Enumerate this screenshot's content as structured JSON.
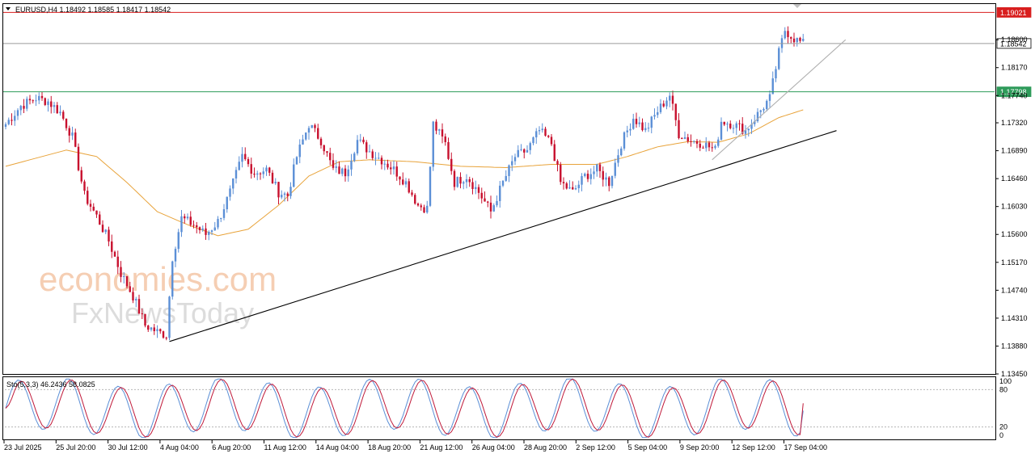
{
  "header": {
    "symbol_line": "EURUSD,H4  1.18492 1.18585 1.18417 1.18542"
  },
  "chart_data": {
    "type": "candlestick",
    "symbol": "EURUSD",
    "timeframe": "H4",
    "ohlc": {
      "open": 1.18492,
      "high": 1.18585,
      "low": 1.18417,
      "close": 1.18542
    },
    "price_axis": {
      "ticks": [
        "1.18600",
        "1.18170",
        "1.17740",
        "1.17320",
        "1.16890",
        "1.16460",
        "1.16030",
        "1.15600",
        "1.15170",
        "1.14740",
        "1.14310",
        "1.13880",
        "1.13450"
      ],
      "range": [
        1.1345,
        1.1915
      ]
    },
    "horizontal_lines": [
      {
        "label": "1.19021",
        "value": 1.19021,
        "color": "#d81e1e"
      },
      {
        "label": "1.18542",
        "value": 1.18542,
        "color": "#9a9a9a",
        "current": true
      },
      {
        "label": "1.17798",
        "value": 1.17798,
        "color": "#2e9b5a"
      }
    ],
    "time_axis": [
      "23 Jul 2025",
      "25 Jul 20:00",
      "30 Jul 12:00",
      "4 Aug 04:00",
      "6 Aug 20:00",
      "11 Aug 12:00",
      "14 Aug 04:00",
      "18 Aug 20:00",
      "21 Aug 12:00",
      "26 Aug 04:00",
      "28 Aug 20:00",
      "2 Sep 12:00",
      "5 Sep 04:00",
      "9 Sep 20:00",
      "12 Sep 12:00",
      "17 Sep 04:00"
    ],
    "close_keypoints": [
      {
        "i": 0,
        "p": 1.173
      },
      {
        "i": 5,
        "p": 1.1758
      },
      {
        "i": 10,
        "p": 1.177
      },
      {
        "i": 14,
        "p": 1.1765
      },
      {
        "i": 18,
        "p": 1.1748
      },
      {
        "i": 22,
        "p": 1.171
      },
      {
        "i": 26,
        "p": 1.162
      },
      {
        "i": 30,
        "p": 1.1588
      },
      {
        "i": 34,
        "p": 1.155
      },
      {
        "i": 38,
        "p": 1.15
      },
      {
        "i": 42,
        "p": 1.1465
      },
      {
        "i": 46,
        "p": 1.142
      },
      {
        "i": 50,
        "p": 1.141
      },
      {
        "i": 53,
        "p": 1.1405
      },
      {
        "i": 55,
        "p": 1.1525
      },
      {
        "i": 58,
        "p": 1.1585
      },
      {
        "i": 62,
        "p": 1.1575
      },
      {
        "i": 66,
        "p": 1.156
      },
      {
        "i": 70,
        "p": 1.158
      },
      {
        "i": 74,
        "p": 1.1625
      },
      {
        "i": 78,
        "p": 1.168
      },
      {
        "i": 82,
        "p": 1.1655
      },
      {
        "i": 86,
        "p": 1.166
      },
      {
        "i": 90,
        "p": 1.1625
      },
      {
        "i": 93,
        "p": 1.162
      },
      {
        "i": 96,
        "p": 1.168
      },
      {
        "i": 100,
        "p": 1.173
      },
      {
        "i": 104,
        "p": 1.1705
      },
      {
        "i": 108,
        "p": 1.166
      },
      {
        "i": 112,
        "p": 1.1655
      },
      {
        "i": 116,
        "p": 1.1705
      },
      {
        "i": 120,
        "p": 1.1688
      },
      {
        "i": 124,
        "p": 1.1675
      },
      {
        "i": 128,
        "p": 1.166
      },
      {
        "i": 132,
        "p": 1.164
      },
      {
        "i": 136,
        "p": 1.1605
      },
      {
        "i": 139,
        "p": 1.16
      },
      {
        "i": 141,
        "p": 1.173
      },
      {
        "i": 145,
        "p": 1.17
      },
      {
        "i": 148,
        "p": 1.164
      },
      {
        "i": 152,
        "p": 1.165
      },
      {
        "i": 156,
        "p": 1.1625
      },
      {
        "i": 160,
        "p": 1.1595
      },
      {
        "i": 164,
        "p": 1.164
      },
      {
        "i": 168,
        "p": 1.168
      },
      {
        "i": 172,
        "p": 1.169
      },
      {
        "i": 176,
        "p": 1.172
      },
      {
        "i": 180,
        "p": 1.17
      },
      {
        "i": 183,
        "p": 1.164
      },
      {
        "i": 187,
        "p": 1.1625
      },
      {
        "i": 191,
        "p": 1.165
      },
      {
        "i": 195,
        "p": 1.166
      },
      {
        "i": 199,
        "p": 1.164
      },
      {
        "i": 203,
        "p": 1.17
      },
      {
        "i": 207,
        "p": 1.174
      },
      {
        "i": 211,
        "p": 1.172
      },
      {
        "i": 215,
        "p": 1.175
      },
      {
        "i": 219,
        "p": 1.1775
      },
      {
        "i": 222,
        "p": 1.1715
      },
      {
        "i": 226,
        "p": 1.1705
      },
      {
        "i": 230,
        "p": 1.17
      },
      {
        "i": 234,
        "p": 1.169
      },
      {
        "i": 236,
        "p": 1.1735
      },
      {
        "i": 240,
        "p": 1.173
      },
      {
        "i": 244,
        "p": 1.172
      },
      {
        "i": 248,
        "p": 1.1745
      },
      {
        "i": 252,
        "p": 1.177
      },
      {
        "i": 255,
        "p": 1.184
      },
      {
        "i": 257,
        "p": 1.1875
      },
      {
        "i": 260,
        "p": 1.1862
      },
      {
        "i": 263,
        "p": 1.1854
      }
    ],
    "moving_average": {
      "color": "#e8a33a",
      "keypoints": [
        {
          "i": 0,
          "p": 1.1665
        },
        {
          "i": 20,
          "p": 1.169
        },
        {
          "i": 30,
          "p": 1.168
        },
        {
          "i": 40,
          "p": 1.164
        },
        {
          "i": 50,
          "p": 1.1595
        },
        {
          "i": 60,
          "p": 1.1575
        },
        {
          "i": 70,
          "p": 1.1558
        },
        {
          "i": 80,
          "p": 1.1568
        },
        {
          "i": 90,
          "p": 1.1605
        },
        {
          "i": 100,
          "p": 1.165
        },
        {
          "i": 110,
          "p": 1.1672
        },
        {
          "i": 120,
          "p": 1.1675
        },
        {
          "i": 135,
          "p": 1.1672
        },
        {
          "i": 150,
          "p": 1.1665
        },
        {
          "i": 165,
          "p": 1.1663
        },
        {
          "i": 180,
          "p": 1.1668
        },
        {
          "i": 195,
          "p": 1.1668
        },
        {
          "i": 205,
          "p": 1.168
        },
        {
          "i": 215,
          "p": 1.1695
        },
        {
          "i": 225,
          "p": 1.1703
        },
        {
          "i": 235,
          "p": 1.1702
        },
        {
          "i": 245,
          "p": 1.1715
        },
        {
          "i": 255,
          "p": 1.174
        },
        {
          "i": 263,
          "p": 1.1752
        }
      ]
    },
    "trendlines": [
      {
        "name": "main-uptrend",
        "color": "#000000",
        "from": {
          "i": 54,
          "p": 1.1395
        },
        "to": {
          "i": 274,
          "p": 1.172
        }
      },
      {
        "name": "steep-uptrend",
        "color": "#b0b0b0",
        "from": {
          "i": 233,
          "p": 1.1675
        },
        "to": {
          "i": 277,
          "p": 1.186
        }
      }
    ],
    "stochastic": {
      "label": "Sto(5,3,3) 46.2436 58.0825",
      "main": 46.2436,
      "signal": 58.0825,
      "levels": [
        "100",
        "80",
        "20",
        "0"
      ],
      "range": [
        0,
        100
      ],
      "main_color": "#5b8fd6",
      "signal_color": "#c01a3a"
    }
  },
  "watermark": {
    "line1": "economies.com",
    "line2": "FxNewsToday"
  }
}
